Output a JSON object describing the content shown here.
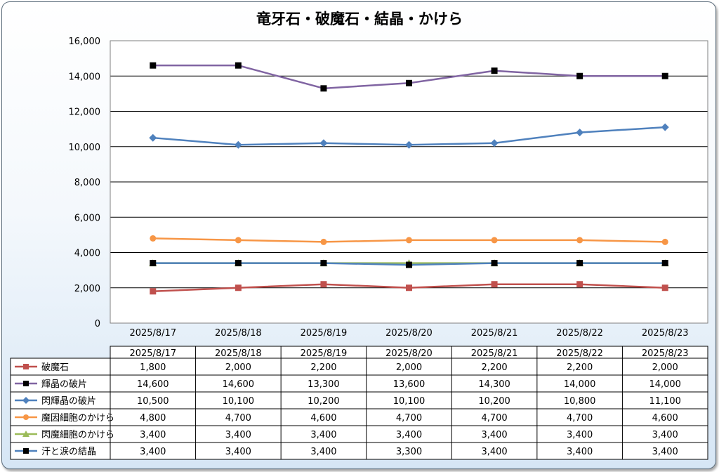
{
  "chart_data": {
    "type": "line",
    "title": "竜牙石・破魔石・結晶・かけら",
    "categories": [
      "2025/8/17",
      "2025/8/18",
      "2025/8/19",
      "2025/8/20",
      "2025/8/21",
      "2025/8/22",
      "2025/8/23"
    ],
    "ylim": [
      0,
      16000
    ],
    "yticks": [
      "0",
      "2,000",
      "4,000",
      "6,000",
      "8,000",
      "10,000",
      "12,000",
      "14,000",
      "16,000"
    ],
    "grid": true,
    "legend": "data-table",
    "series": [
      {
        "name": "破魔石",
        "values": [
          1800,
          2000,
          2200,
          2000,
          2200,
          2200,
          2000
        ],
        "labels": [
          "1,800",
          "2,000",
          "2,200",
          "2,000",
          "2,200",
          "2,200",
          "2,000"
        ],
        "color": "#c0504d",
        "marker": "square"
      },
      {
        "name": "輝晶の破片",
        "values": [
          14600,
          14600,
          13300,
          13600,
          14300,
          14000,
          14000
        ],
        "labels": [
          "14,600",
          "14,600",
          "13,300",
          "13,600",
          "14,300",
          "14,000",
          "14,000"
        ],
        "color": "#8064a2",
        "marker": "square-black"
      },
      {
        "name": "閃輝晶の破片",
        "values": [
          10500,
          10100,
          10200,
          10100,
          10200,
          10800,
          11100
        ],
        "labels": [
          "10,500",
          "10,100",
          "10,200",
          "10,100",
          "10,200",
          "10,800",
          "11,100"
        ],
        "color": "#4f81bd",
        "marker": "diamond"
      },
      {
        "name": "魔因細胞のかけら",
        "values": [
          4800,
          4700,
          4600,
          4700,
          4700,
          4700,
          4600
        ],
        "labels": [
          "4,800",
          "4,700",
          "4,600",
          "4,700",
          "4,700",
          "4,700",
          "4,600"
        ],
        "color": "#f79646",
        "marker": "circle"
      },
      {
        "name": "閃魔細胞のかけら",
        "values": [
          3400,
          3400,
          3400,
          3400,
          3400,
          3400,
          3400
        ],
        "labels": [
          "3,400",
          "3,400",
          "3,400",
          "3,400",
          "3,400",
          "3,400",
          "3,400"
        ],
        "color": "#9bbb59",
        "marker": "triangle"
      },
      {
        "name": "汗と涙の結晶",
        "values": [
          3400,
          3400,
          3400,
          3300,
          3400,
          3400,
          3400
        ],
        "labels": [
          "3,400",
          "3,400",
          "3,400",
          "3,300",
          "3,400",
          "3,400",
          "3,400"
        ],
        "color": "#4f81bd",
        "marker": "square-black"
      }
    ]
  }
}
